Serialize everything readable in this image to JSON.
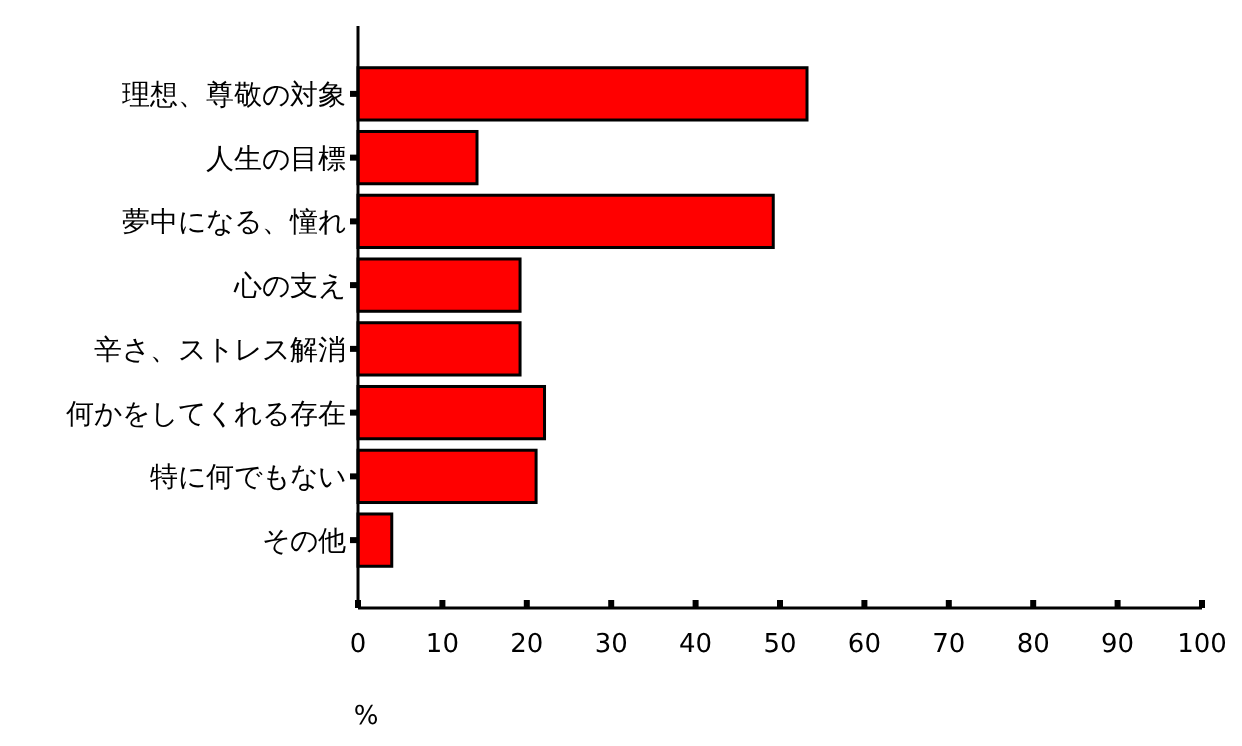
{
  "chart_data": {
    "type": "bar",
    "orientation": "horizontal",
    "xlabel": "%",
    "categories": [
      "理想、尊敬の対象",
      "人生の目標",
      "夢中になる、憧れ",
      "心の支え",
      "辛さ、ストレス解消",
      "何かをしてくれる存在",
      "特に何でもない",
      "その他"
    ],
    "values": [
      53.2,
      14.1,
      49.2,
      19.2,
      19.2,
      22.1,
      21.1,
      4.0
    ],
    "color": "#ff0000",
    "xlim": [
      0,
      100
    ],
    "xticks": [
      0,
      10,
      20,
      30,
      40,
      50,
      60,
      70,
      80,
      90,
      100
    ],
    "grid": false
  }
}
